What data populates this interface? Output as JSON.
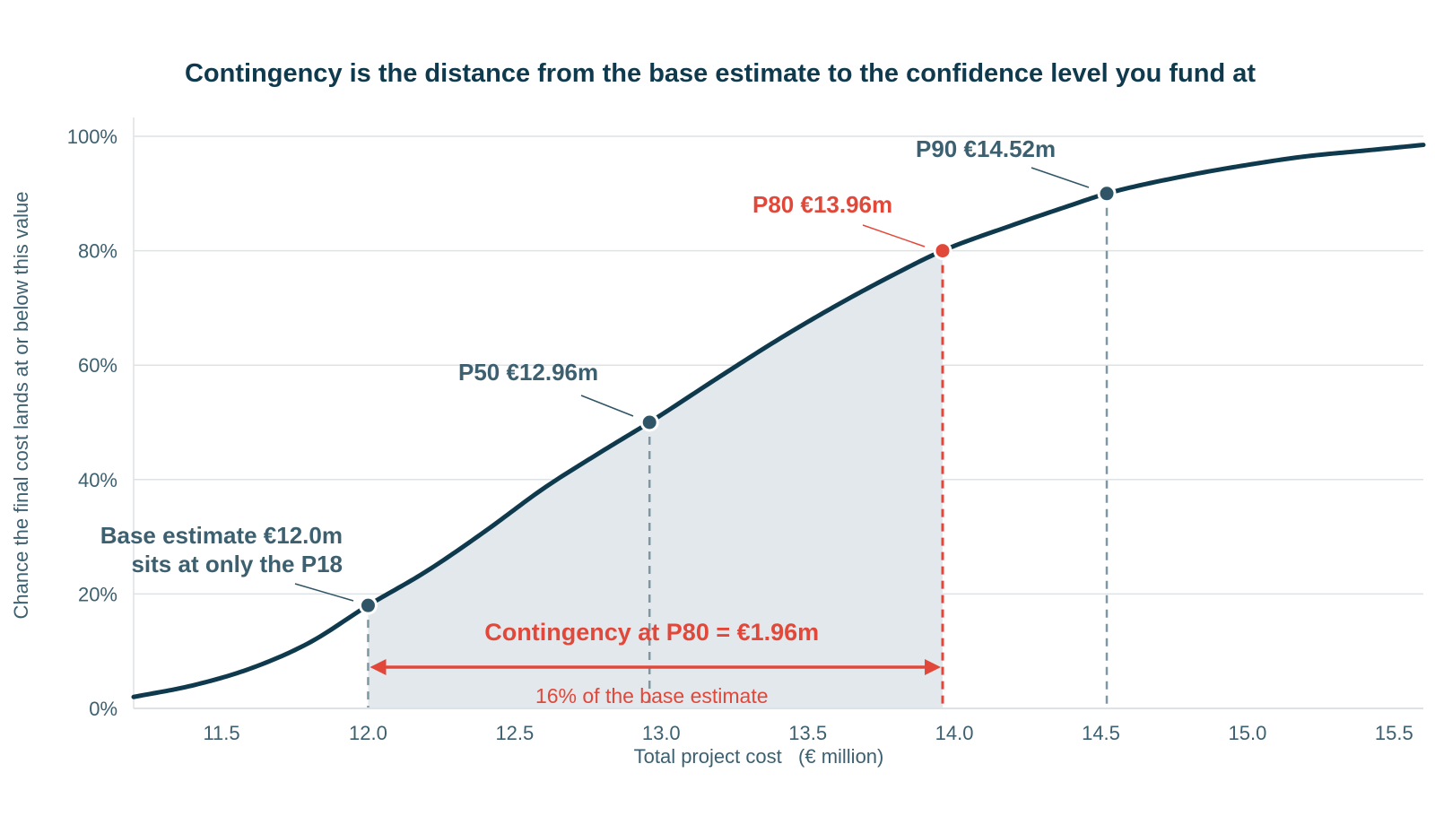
{
  "colors": {
    "curve": "#0f3a4d",
    "grid": "#dde2e6",
    "axis_text": "#3d6070",
    "point": "#2f5566",
    "red": "#e2483a",
    "shade": "#e2e8ec",
    "dashed_gray": "#7f97a3"
  },
  "chart_data": {
    "type": "line",
    "title": "Contingency is the distance from the base estimate to the confidence level you fund at",
    "xlabel": "Total project cost   (€ million)",
    "ylabel": "Chance the final cost lands at or below this value",
    "xlim": [
      11.2,
      15.6
    ],
    "ylim": [
      0,
      100
    ],
    "x_ticks": [
      11.5,
      12.0,
      12.5,
      13.0,
      13.5,
      14.0,
      14.5,
      15.0,
      15.5
    ],
    "x_tick_labels": [
      "11.5",
      "12.0",
      "12.5",
      "13.0",
      "13.5",
      "14.0",
      "14.5",
      "15.0",
      "15.5"
    ],
    "y_ticks": [
      0,
      20,
      40,
      60,
      80,
      100
    ],
    "y_tick_labels": [
      "0%",
      "20%",
      "40%",
      "60%",
      "80%",
      "100%"
    ],
    "grid": "horizontal",
    "series": [
      {
        "x": [
          11.2,
          11.4,
          11.6,
          11.8,
          12.0,
          12.2,
          12.4,
          12.6,
          12.8,
          12.96,
          13.2,
          13.4,
          13.6,
          13.8,
          13.96,
          14.2,
          14.4,
          14.52,
          14.8,
          15.0,
          15.2,
          15.4,
          15.6
        ],
        "y": [
          2,
          4,
          7,
          11.5,
          18,
          24,
          31,
          38.5,
          45,
          50,
          58,
          64.5,
          70.5,
          76,
          80,
          84.5,
          88,
          90,
          93.2,
          95,
          96.5,
          97.5,
          98.5
        ]
      }
    ],
    "markers": [
      {
        "key": "base",
        "x": 12.0,
        "y": 18,
        "label_lines": [
          "Base estimate  €12.0m",
          "sits at only the P18"
        ],
        "color": "point"
      },
      {
        "key": "p50",
        "x": 12.96,
        "y": 50,
        "label_lines": [
          "P50  €12.96m"
        ],
        "color": "point"
      },
      {
        "key": "p80",
        "x": 13.96,
        "y": 80,
        "label_lines": [
          "P80  €13.96m"
        ],
        "color": "red"
      },
      {
        "key": "p90",
        "x": 14.52,
        "y": 90,
        "label_lines": [
          "P90  €14.52m"
        ],
        "color": "point"
      }
    ],
    "shaded_range": [
      12.0,
      13.96
    ],
    "contingency": {
      "from": 12.0,
      "to": 13.96,
      "label": "Contingency at P80  =  €1.96m",
      "note": "16% of the base estimate"
    }
  }
}
